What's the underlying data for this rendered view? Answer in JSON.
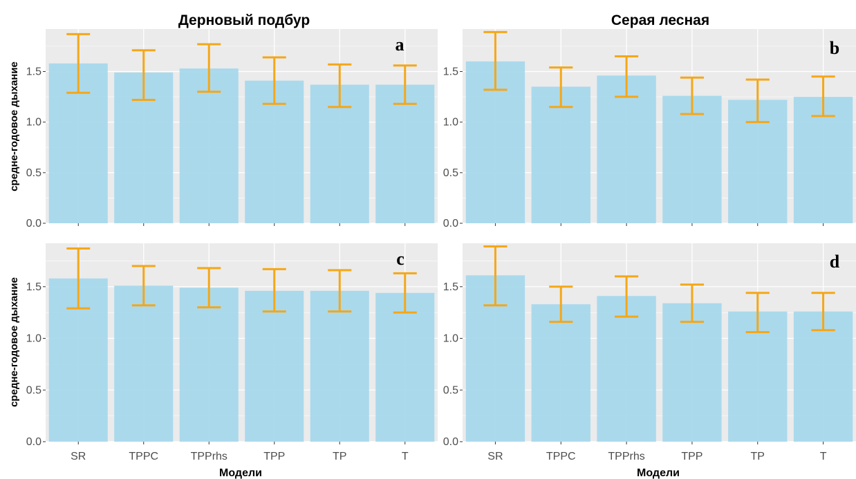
{
  "figure": {
    "y_axis_label": "средне-годовое дыхание",
    "x_axis_label": "Модели",
    "column_titles": [
      "Дерновый подбур",
      "Серая лесная"
    ]
  },
  "colors": {
    "panel_background": "#ebebeb",
    "grid": "#ffffff",
    "bar_fill": "#a6d8ec",
    "error_bar": "#f5a718",
    "tick_text": "#4d4d4d"
  },
  "chart_data": [
    {
      "type": "bar",
      "panel": "a",
      "title": "Дерновый подбур",
      "categories": [
        "SR",
        "TPPC",
        "TPPrhs",
        "TPP",
        "TP",
        "T"
      ],
      "values": [
        1.58,
        1.49,
        1.53,
        1.41,
        1.37,
        1.37
      ],
      "error_low": [
        1.29,
        1.22,
        1.3,
        1.18,
        1.15,
        1.18
      ],
      "error_high": [
        1.87,
        1.71,
        1.77,
        1.64,
        1.57,
        1.56
      ],
      "ylabel": "средне-годовое дыхание",
      "xlabel": "",
      "ylim": [
        0,
        1.92
      ],
      "yticks": [
        "0.0",
        "0.5",
        "1.0",
        "1.5"
      ],
      "show_x_tick_labels": false,
      "grid": true
    },
    {
      "type": "bar",
      "panel": "b",
      "title": "Серая лесная",
      "categories": [
        "SR",
        "TPPC",
        "TPPrhs",
        "TPP",
        "TP",
        "T"
      ],
      "values": [
        1.6,
        1.35,
        1.46,
        1.26,
        1.22,
        1.25
      ],
      "error_low": [
        1.32,
        1.15,
        1.25,
        1.08,
        1.0,
        1.06
      ],
      "error_high": [
        1.89,
        1.54,
        1.65,
        1.44,
        1.42,
        1.45
      ],
      "ylabel": "",
      "xlabel": "",
      "ylim": [
        0,
        1.92
      ],
      "yticks": [
        "0.0",
        "0.5",
        "1.0",
        "1.5"
      ],
      "show_x_tick_labels": false,
      "grid": true
    },
    {
      "type": "bar",
      "panel": "c",
      "title": "",
      "categories": [
        "SR",
        "TPPC",
        "TPPrhs",
        "TPP",
        "TP",
        "T"
      ],
      "values": [
        1.58,
        1.51,
        1.49,
        1.46,
        1.46,
        1.44
      ],
      "error_low": [
        1.29,
        1.32,
        1.3,
        1.26,
        1.26,
        1.25
      ],
      "error_high": [
        1.87,
        1.7,
        1.68,
        1.67,
        1.66,
        1.63
      ],
      "ylabel": "средне-годовое дыхание",
      "xlabel": "Модели",
      "ylim": [
        0,
        1.92
      ],
      "yticks": [
        "0.0",
        "0.5",
        "1.0",
        "1.5"
      ],
      "show_x_tick_labels": true,
      "grid": true
    },
    {
      "type": "bar",
      "panel": "d",
      "title": "",
      "categories": [
        "SR",
        "TPPC",
        "TPPrhs",
        "TPP",
        "TP",
        "T"
      ],
      "values": [
        1.61,
        1.33,
        1.41,
        1.34,
        1.26,
        1.26
      ],
      "error_low": [
        1.32,
        1.16,
        1.21,
        1.16,
        1.06,
        1.08
      ],
      "error_high": [
        1.89,
        1.5,
        1.6,
        1.52,
        1.44,
        1.44
      ],
      "ylabel": "",
      "xlabel": "Модели",
      "ylim": [
        0,
        1.92
      ],
      "yticks": [
        "0.0",
        "0.5",
        "1.0",
        "1.5"
      ],
      "show_x_tick_labels": true,
      "grid": true
    }
  ]
}
